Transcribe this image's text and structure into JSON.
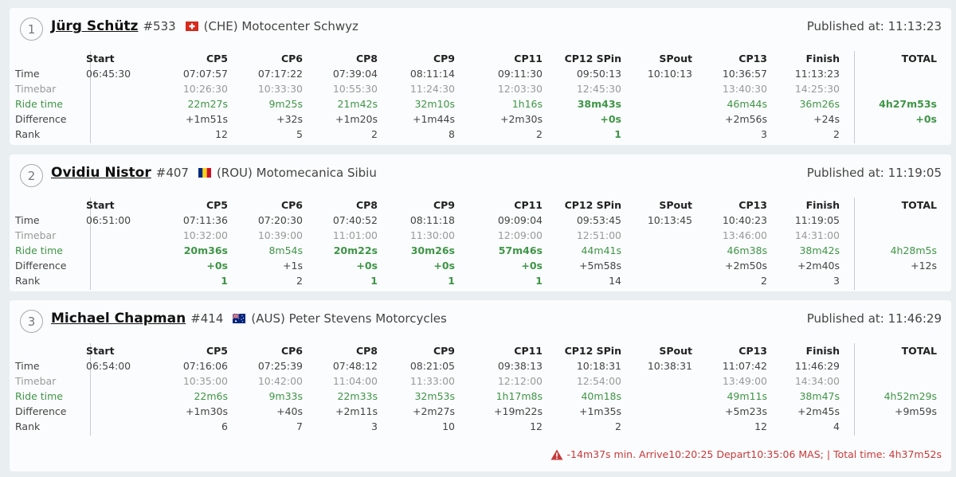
{
  "columns": [
    "Start",
    "CP5",
    "CP6",
    "CP8",
    "CP9",
    "CP11",
    "CP12 SPin",
    "SPout",
    "CP13",
    "Finish",
    "TOTAL"
  ],
  "row_labels": [
    "Time",
    "Timebar",
    "Ride time",
    "Difference",
    "Rank"
  ],
  "published_prefix": "Published at:",
  "riders": [
    {
      "position": "1",
      "name": "Jürg Schütz",
      "number": "#533",
      "flag_icon": "switzerland-flag-icon",
      "team": "(CHE) Motocenter Schwyz",
      "published": "11:13:23",
      "time": [
        "06:45:30",
        "07:07:57",
        "07:17:22",
        "07:39:04",
        "08:11:14",
        "09:11:30",
        "09:50:13",
        "10:10:13",
        "10:36:57",
        "11:13:23",
        ""
      ],
      "timebar": [
        "",
        "10:26:30",
        "10:33:30",
        "10:55:30",
        "11:24:30",
        "12:03:30",
        "12:45:30",
        "",
        "13:40:30",
        "14:25:30",
        ""
      ],
      "ride": [
        "",
        "22m27s",
        "9m25s",
        "21m42s",
        "32m10s",
        "1h16s",
        "38m43s",
        "",
        "46m44s",
        "36m26s",
        "4h27m53s"
      ],
      "diff": [
        "",
        "+1m51s",
        "+32s",
        "+1m20s",
        "+1m44s",
        "+2m30s",
        "+0s",
        "",
        "+2m56s",
        "+24s",
        "+0s"
      ],
      "rank": [
        "",
        "12",
        "5",
        "2",
        "8",
        "2",
        "1",
        "",
        "3",
        "2",
        ""
      ]
    },
    {
      "position": "2",
      "name": "Ovidiu Nistor",
      "number": "#407",
      "flag_icon": "romania-flag-icon",
      "team": "(ROU) Motomecanica Sibiu",
      "published": "11:19:05",
      "time": [
        "06:51:00",
        "07:11:36",
        "07:20:30",
        "07:40:52",
        "08:11:18",
        "09:09:04",
        "09:53:45",
        "10:13:45",
        "10:40:23",
        "11:19:05",
        ""
      ],
      "timebar": [
        "",
        "10:32:00",
        "10:39:00",
        "11:01:00",
        "11:30:00",
        "12:09:00",
        "12:51:00",
        "",
        "13:46:00",
        "14:31:00",
        ""
      ],
      "ride": [
        "",
        "20m36s",
        "8m54s",
        "20m22s",
        "30m26s",
        "57m46s",
        "44m41s",
        "",
        "46m38s",
        "38m42s",
        "4h28m5s"
      ],
      "diff": [
        "",
        "+0s",
        "+1s",
        "+0s",
        "+0s",
        "+0s",
        "+5m58s",
        "",
        "+2m50s",
        "+2m40s",
        "+12s"
      ],
      "rank": [
        "",
        "1",
        "2",
        "1",
        "1",
        "1",
        "14",
        "",
        "2",
        "3",
        ""
      ]
    },
    {
      "position": "3",
      "name": "Michael Chapman",
      "number": "#414",
      "flag_icon": "australia-flag-icon",
      "team": "(AUS) Peter Stevens Motorcycles",
      "published": "11:46:29",
      "time": [
        "06:54:00",
        "07:16:06",
        "07:25:39",
        "07:48:12",
        "08:21:05",
        "09:38:13",
        "10:18:31",
        "10:38:31",
        "11:07:42",
        "11:46:29",
        ""
      ],
      "timebar": [
        "",
        "10:35:00",
        "10:42:00",
        "11:04:00",
        "11:33:00",
        "12:12:00",
        "12:54:00",
        "",
        "13:49:00",
        "14:34:00",
        ""
      ],
      "ride": [
        "",
        "22m6s",
        "9m33s",
        "22m33s",
        "32m53s",
        "1h17m8s",
        "40m18s",
        "",
        "49m11s",
        "38m47s",
        "4h52m29s"
      ],
      "diff": [
        "",
        "+1m30s",
        "+40s",
        "+2m11s",
        "+2m27s",
        "+19m22s",
        "+1m35s",
        "",
        "+5m23s",
        "+2m45s",
        "+9m59s"
      ],
      "rank": [
        "",
        "6",
        "7",
        "3",
        "10",
        "12",
        "2",
        "",
        "12",
        "4",
        ""
      ],
      "warning": "-14m37s min. Arrive10:20:25 Depart10:35:06 MAS; | Total time: 4h37m52s",
      "warning_icon": "warning-triangle-icon"
    }
  ],
  "colors": {
    "green": "#3f9547",
    "grey": "#999999",
    "warning": "#c73a3a",
    "background": "#e9eef1",
    "card": "#fbfcfd"
  }
}
